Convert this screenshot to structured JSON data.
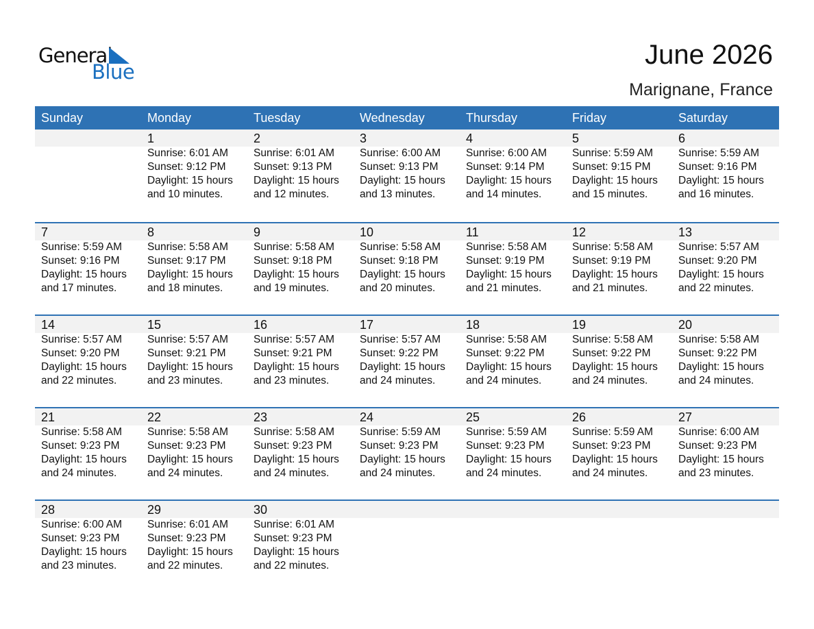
{
  "logo": {
    "line1": "General",
    "line2": "Blue"
  },
  "title": "June 2026",
  "location": "Marignane, France",
  "weekdays": [
    "Sunday",
    "Monday",
    "Tuesday",
    "Wednesday",
    "Thursday",
    "Friday",
    "Saturday"
  ],
  "weeks": [
    [
      null,
      {
        "day": "1",
        "sunrise": "Sunrise: 6:01 AM",
        "sunset": "Sunset: 9:12 PM",
        "daylight": "Daylight: 15 hours",
        "minutes": "and 10 minutes."
      },
      {
        "day": "2",
        "sunrise": "Sunrise: 6:01 AM",
        "sunset": "Sunset: 9:13 PM",
        "daylight": "Daylight: 15 hours",
        "minutes": "and 12 minutes."
      },
      {
        "day": "3",
        "sunrise": "Sunrise: 6:00 AM",
        "sunset": "Sunset: 9:13 PM",
        "daylight": "Daylight: 15 hours",
        "minutes": "and 13 minutes."
      },
      {
        "day": "4",
        "sunrise": "Sunrise: 6:00 AM",
        "sunset": "Sunset: 9:14 PM",
        "daylight": "Daylight: 15 hours",
        "minutes": "and 14 minutes."
      },
      {
        "day": "5",
        "sunrise": "Sunrise: 5:59 AM",
        "sunset": "Sunset: 9:15 PM",
        "daylight": "Daylight: 15 hours",
        "minutes": "and 15 minutes."
      },
      {
        "day": "6",
        "sunrise": "Sunrise: 5:59 AM",
        "sunset": "Sunset: 9:16 PM",
        "daylight": "Daylight: 15 hours",
        "minutes": "and 16 minutes."
      }
    ],
    [
      {
        "day": "7",
        "sunrise": "Sunrise: 5:59 AM",
        "sunset": "Sunset: 9:16 PM",
        "daylight": "Daylight: 15 hours",
        "minutes": "and 17 minutes."
      },
      {
        "day": "8",
        "sunrise": "Sunrise: 5:58 AM",
        "sunset": "Sunset: 9:17 PM",
        "daylight": "Daylight: 15 hours",
        "minutes": "and 18 minutes."
      },
      {
        "day": "9",
        "sunrise": "Sunrise: 5:58 AM",
        "sunset": "Sunset: 9:18 PM",
        "daylight": "Daylight: 15 hours",
        "minutes": "and 19 minutes."
      },
      {
        "day": "10",
        "sunrise": "Sunrise: 5:58 AM",
        "sunset": "Sunset: 9:18 PM",
        "daylight": "Daylight: 15 hours",
        "minutes": "and 20 minutes."
      },
      {
        "day": "11",
        "sunrise": "Sunrise: 5:58 AM",
        "sunset": "Sunset: 9:19 PM",
        "daylight": "Daylight: 15 hours",
        "minutes": "and 21 minutes."
      },
      {
        "day": "12",
        "sunrise": "Sunrise: 5:58 AM",
        "sunset": "Sunset: 9:19 PM",
        "daylight": "Daylight: 15 hours",
        "minutes": "and 21 minutes."
      },
      {
        "day": "13",
        "sunrise": "Sunrise: 5:57 AM",
        "sunset": "Sunset: 9:20 PM",
        "daylight": "Daylight: 15 hours",
        "minutes": "and 22 minutes."
      }
    ],
    [
      {
        "day": "14",
        "sunrise": "Sunrise: 5:57 AM",
        "sunset": "Sunset: 9:20 PM",
        "daylight": "Daylight: 15 hours",
        "minutes": "and 22 minutes."
      },
      {
        "day": "15",
        "sunrise": "Sunrise: 5:57 AM",
        "sunset": "Sunset: 9:21 PM",
        "daylight": "Daylight: 15 hours",
        "minutes": "and 23 minutes."
      },
      {
        "day": "16",
        "sunrise": "Sunrise: 5:57 AM",
        "sunset": "Sunset: 9:21 PM",
        "daylight": "Daylight: 15 hours",
        "minutes": "and 23 minutes."
      },
      {
        "day": "17",
        "sunrise": "Sunrise: 5:57 AM",
        "sunset": "Sunset: 9:22 PM",
        "daylight": "Daylight: 15 hours",
        "minutes": "and 24 minutes."
      },
      {
        "day": "18",
        "sunrise": "Sunrise: 5:58 AM",
        "sunset": "Sunset: 9:22 PM",
        "daylight": "Daylight: 15 hours",
        "minutes": "and 24 minutes."
      },
      {
        "day": "19",
        "sunrise": "Sunrise: 5:58 AM",
        "sunset": "Sunset: 9:22 PM",
        "daylight": "Daylight: 15 hours",
        "minutes": "and 24 minutes."
      },
      {
        "day": "20",
        "sunrise": "Sunrise: 5:58 AM",
        "sunset": "Sunset: 9:22 PM",
        "daylight": "Daylight: 15 hours",
        "minutes": "and 24 minutes."
      }
    ],
    [
      {
        "day": "21",
        "sunrise": "Sunrise: 5:58 AM",
        "sunset": "Sunset: 9:23 PM",
        "daylight": "Daylight: 15 hours",
        "minutes": "and 24 minutes."
      },
      {
        "day": "22",
        "sunrise": "Sunrise: 5:58 AM",
        "sunset": "Sunset: 9:23 PM",
        "daylight": "Daylight: 15 hours",
        "minutes": "and 24 minutes."
      },
      {
        "day": "23",
        "sunrise": "Sunrise: 5:58 AM",
        "sunset": "Sunset: 9:23 PM",
        "daylight": "Daylight: 15 hours",
        "minutes": "and 24 minutes."
      },
      {
        "day": "24",
        "sunrise": "Sunrise: 5:59 AM",
        "sunset": "Sunset: 9:23 PM",
        "daylight": "Daylight: 15 hours",
        "minutes": "and 24 minutes."
      },
      {
        "day": "25",
        "sunrise": "Sunrise: 5:59 AM",
        "sunset": "Sunset: 9:23 PM",
        "daylight": "Daylight: 15 hours",
        "minutes": "and 24 minutes."
      },
      {
        "day": "26",
        "sunrise": "Sunrise: 5:59 AM",
        "sunset": "Sunset: 9:23 PM",
        "daylight": "Daylight: 15 hours",
        "minutes": "and 24 minutes."
      },
      {
        "day": "27",
        "sunrise": "Sunrise: 6:00 AM",
        "sunset": "Sunset: 9:23 PM",
        "daylight": "Daylight: 15 hours",
        "minutes": "and 23 minutes."
      }
    ],
    [
      {
        "day": "28",
        "sunrise": "Sunrise: 6:00 AM",
        "sunset": "Sunset: 9:23 PM",
        "daylight": "Daylight: 15 hours",
        "minutes": "and 23 minutes."
      },
      {
        "day": "29",
        "sunrise": "Sunrise: 6:01 AM",
        "sunset": "Sunset: 9:23 PM",
        "daylight": "Daylight: 15 hours",
        "minutes": "and 22 minutes."
      },
      {
        "day": "30",
        "sunrise": "Sunrise: 6:01 AM",
        "sunset": "Sunset: 9:23 PM",
        "daylight": "Daylight: 15 hours",
        "minutes": "and 22 minutes."
      },
      null,
      null,
      null,
      null
    ]
  ],
  "colors": {
    "header": "#2e72b4",
    "band": "#f2f2f2",
    "logo_blue": "#1a6fbf"
  }
}
